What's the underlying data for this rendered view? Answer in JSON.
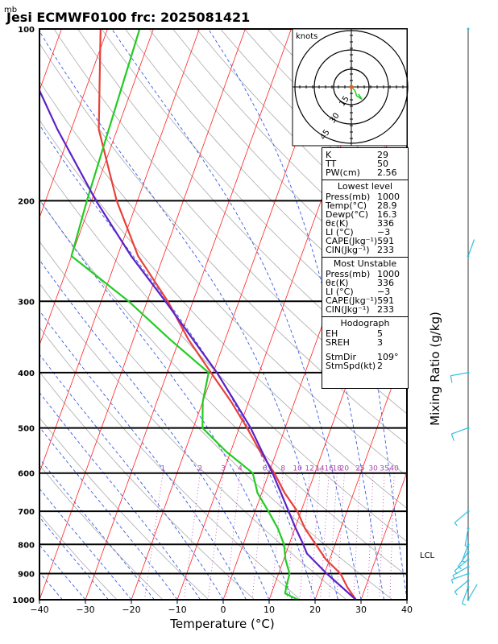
{
  "title": "Jesi ECMWF0100  frc: 2025081421",
  "pressure_unit": "mb",
  "xlabel": "Temperature (°C)",
  "ylabel_right": "Mixing Ratio (g/kg)",
  "hodograph": {
    "unit_label": "knots",
    "ring_labels": [
      "15",
      "30",
      "45"
    ]
  },
  "lcl_label": "LCL",
  "indices": [
    {
      "label": "K",
      "value": "29"
    },
    {
      "label": "TT",
      "value": "50"
    },
    {
      "label": "PW(cm)",
      "value": "2.56"
    }
  ],
  "lowest_level": {
    "header": "Lowest level",
    "rows": [
      {
        "label": "Press(mb)",
        "value": "1000"
      },
      {
        "label": "Temp(°C)",
        "value": "28.9"
      },
      {
        "label": "Dewp(°C)",
        "value": "16.3"
      },
      {
        "label": "θε(K)",
        "value": "336"
      },
      {
        "label": "LI (°C)",
        "value": "−3"
      },
      {
        "label": "CAPE(Jkg⁻¹)",
        "value": "591"
      },
      {
        "label": "CIN(Jkg⁻¹)",
        "value": "233"
      }
    ]
  },
  "most_unstable": {
    "header": "Most Unstable",
    "rows": [
      {
        "label": "Press(mb)",
        "value": "1000"
      },
      {
        "label": "θε(K)",
        "value": "336"
      },
      {
        "label": "LI (°C)",
        "value": "−3"
      },
      {
        "label": "CAPE(Jkg⁻¹)",
        "value": "591"
      },
      {
        "label": "CIN(Jkg⁻¹)",
        "value": "233"
      }
    ]
  },
  "hodo_table": {
    "header": "Hodograph",
    "rows": [
      {
        "label": "EH",
        "value": "5"
      },
      {
        "label": "SREH",
        "value": "3"
      }
    ],
    "rows2": [
      {
        "label": "StmDir",
        "value": "109°"
      },
      {
        "label": "StmSpd(kt)",
        "value": "2"
      }
    ]
  },
  "colors": {
    "temperature": "#e8403a",
    "dewpoint": "#22cc22",
    "parcel": "#5b22c8",
    "isotherm": "#ff2020",
    "dry_adiabat": "#aaaaaa",
    "moist_adiabat": "#3b5be0",
    "mixing_ratio": "#b040b0",
    "wind": "#30c0e0"
  },
  "chart_data": {
    "type": "line",
    "x_axis": "temperature_C",
    "y_axis": "pressure_mb_log",
    "xlim": [
      -40,
      40
    ],
    "ylim": [
      1000,
      100
    ],
    "x_ticks": [
      -40,
      -30,
      -20,
      -10,
      0,
      10,
      20,
      30,
      40
    ],
    "pressure_levels": [
      1000,
      900,
      800,
      700,
      600,
      500,
      400,
      300,
      200,
      100
    ],
    "mixing_ratio_labels": [
      "1",
      "2",
      "3",
      "4",
      "6",
      "8",
      "10",
      "12",
      "14",
      "16",
      "18",
      "20",
      "25",
      "30",
      "35",
      "40"
    ],
    "series": [
      {
        "key": "temperature",
        "points": [
          [
            1000,
            28.9
          ],
          [
            950,
            26
          ],
          [
            900,
            23.5
          ],
          [
            850,
            19.2
          ],
          [
            800,
            15.8
          ],
          [
            750,
            12.2
          ],
          [
            700,
            9.2
          ],
          [
            650,
            5
          ],
          [
            600,
            1.2
          ],
          [
            550,
            -3.6
          ],
          [
            500,
            -8.3
          ],
          [
            450,
            -13.8
          ],
          [
            400,
            -20.5
          ],
          [
            350,
            -28
          ],
          [
            300,
            -35.5
          ],
          [
            250,
            -45.5
          ],
          [
            200,
            -54.5
          ],
          [
            150,
            -64
          ],
          [
            100,
            -71.5
          ]
        ]
      },
      {
        "key": "dewpoint",
        "points": [
          [
            1000,
            16.3
          ],
          [
            975,
            13
          ],
          [
            950,
            12.7
          ],
          [
            900,
            12.4
          ],
          [
            850,
            10.4
          ],
          [
            800,
            8.9
          ],
          [
            750,
            6.3
          ],
          [
            700,
            2.9
          ],
          [
            650,
            -0.9
          ],
          [
            600,
            -3.5
          ],
          [
            550,
            -11
          ],
          [
            500,
            -18
          ],
          [
            450,
            -20
          ],
          [
            400,
            -21
          ],
          [
            350,
            -32
          ],
          [
            300,
            -44
          ],
          [
            250,
            -60
          ],
          [
            200,
            -61
          ],
          [
            100,
            -63
          ]
        ]
      },
      {
        "key": "parcel",
        "points": [
          [
            1000,
            28.9
          ],
          [
            900,
            20.5
          ],
          [
            830,
            14.6
          ],
          [
            800,
            13.1
          ],
          [
            750,
            10.2
          ],
          [
            700,
            7.3
          ],
          [
            650,
            4.2
          ],
          [
            600,
            0.8
          ],
          [
            550,
            -3.2
          ],
          [
            500,
            -7.5
          ],
          [
            450,
            -13
          ],
          [
            400,
            -19.2
          ],
          [
            350,
            -27
          ],
          [
            300,
            -36
          ],
          [
            250,
            -47
          ],
          [
            200,
            -59
          ],
          [
            150,
            -73
          ],
          [
            100,
            -91
          ]
        ]
      }
    ],
    "wind_barbs": [
      {
        "p": 1000,
        "dir": 30,
        "kt": 3
      },
      {
        "p": 950,
        "dir": 200,
        "kt": 5
      },
      {
        "p": 925,
        "dir": 230,
        "kt": 5
      },
      {
        "p": 900,
        "dir": 250,
        "kt": 5
      },
      {
        "p": 875,
        "dir": 240,
        "kt": 5
      },
      {
        "p": 850,
        "dir": 230,
        "kt": 5
      },
      {
        "p": 825,
        "dir": 215,
        "kt": 5
      },
      {
        "p": 800,
        "dir": 200,
        "kt": 5
      },
      {
        "p": 750,
        "dir": 190,
        "kt": 5
      },
      {
        "p": 700,
        "dir": 230,
        "kt": 5
      },
      {
        "p": 500,
        "dir": 250,
        "kt": 10
      },
      {
        "p": 400,
        "dir": 260,
        "kt": 10
      },
      {
        "p": 250,
        "dir": 20,
        "kt": 2
      },
      {
        "p": 100,
        "dir": 0,
        "kt": 0
      }
    ],
    "hodograph_trace": [
      [
        0,
        0
      ],
      [
        2,
        -2
      ],
      [
        3,
        -5
      ],
      [
        6,
        -7
      ],
      [
        4,
        -4
      ]
    ]
  }
}
